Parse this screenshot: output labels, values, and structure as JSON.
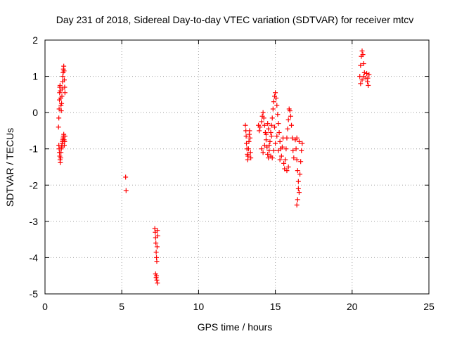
{
  "chart_data": {
    "type": "scatter",
    "title": "Day 231 of 2018, Sidereal Day-to-day VTEC variation (SDTVAR) for receiver mtcv",
    "xlabel": "GPS time / hours",
    "ylabel": "SDTVAR / TECUs",
    "xlim": [
      0,
      25
    ],
    "ylim": [
      -5,
      2
    ],
    "xticks": [
      0,
      5,
      10,
      15,
      20,
      25
    ],
    "yticks": [
      -5,
      -4,
      -3,
      -2,
      -1,
      0,
      1,
      2
    ],
    "xtick_labels": [
      "0",
      "5",
      "10",
      "15",
      "20",
      "25"
    ],
    "ytick_labels": [
      "-5",
      "-4",
      "-3",
      "-2",
      "-1",
      "0",
      "1",
      "2"
    ],
    "grid": true,
    "marker": "+",
    "series": [
      {
        "name": "SDTVAR",
        "color": "#ff0000",
        "points": [
          [
            0.88,
            -0.4
          ],
          [
            0.9,
            -0.15
          ],
          [
            0.92,
            0.1
          ],
          [
            0.94,
            0.35
          ],
          [
            0.95,
            0.55
          ],
          [
            0.96,
            0.7
          ],
          [
            0.98,
            0.75
          ],
          [
            1.0,
            0.6
          ],
          [
            1.02,
            0.4
          ],
          [
            1.04,
            0.2
          ],
          [
            1.06,
            0.05
          ],
          [
            1.08,
            0.25
          ],
          [
            1.1,
            0.45
          ],
          [
            1.12,
            0.65
          ],
          [
            1.14,
            0.85
          ],
          [
            1.16,
            1.0
          ],
          [
            1.18,
            1.1
          ],
          [
            1.2,
            1.2
          ],
          [
            1.22,
            1.28
          ],
          [
            1.24,
            1.15
          ],
          [
            1.26,
            0.9
          ],
          [
            1.28,
            0.7
          ],
          [
            1.3,
            0.55
          ],
          [
            0.9,
            -0.9
          ],
          [
            0.92,
            -1.0
          ],
          [
            0.94,
            -1.1
          ],
          [
            0.96,
            -1.2
          ],
          [
            0.98,
            -1.3
          ],
          [
            1.0,
            -1.38
          ],
          [
            1.02,
            -1.25
          ],
          [
            1.04,
            -1.1
          ],
          [
            1.06,
            -1.0
          ],
          [
            1.08,
            -0.95
          ],
          [
            1.1,
            -0.9
          ],
          [
            1.12,
            -0.85
          ],
          [
            1.14,
            -0.8
          ],
          [
            1.16,
            -0.75
          ],
          [
            1.18,
            -0.7
          ],
          [
            1.2,
            -0.65
          ],
          [
            1.22,
            -0.6
          ],
          [
            1.24,
            -0.75
          ],
          [
            1.26,
            -0.9
          ],
          [
            1.28,
            -0.8
          ],
          [
            1.3,
            -0.65
          ],
          [
            5.25,
            -1.78
          ],
          [
            5.28,
            -2.15
          ],
          [
            7.15,
            -3.2
          ],
          [
            7.18,
            -3.3
          ],
          [
            7.2,
            -3.45
          ],
          [
            7.22,
            -3.6
          ],
          [
            7.24,
            -3.85
          ],
          [
            7.26,
            -4.0
          ],
          [
            7.28,
            -4.1
          ],
          [
            7.3,
            -3.7
          ],
          [
            7.32,
            -3.25
          ],
          [
            7.34,
            -3.4
          ],
          [
            7.2,
            -4.45
          ],
          [
            7.24,
            -4.55
          ],
          [
            7.28,
            -4.62
          ],
          [
            7.32,
            -4.7
          ],
          [
            7.26,
            -4.5
          ],
          [
            13.05,
            -0.35
          ],
          [
            13.08,
            -0.5
          ],
          [
            13.1,
            -0.65
          ],
          [
            13.12,
            -0.85
          ],
          [
            13.15,
            -1.0
          ],
          [
            13.18,
            -1.15
          ],
          [
            13.2,
            -1.3
          ],
          [
            13.22,
            -1.2
          ],
          [
            13.25,
            -1.0
          ],
          [
            13.28,
            -0.8
          ],
          [
            13.3,
            -0.6
          ],
          [
            13.32,
            -0.5
          ],
          [
            13.35,
            -0.7
          ],
          [
            13.38,
            -1.1
          ],
          [
            13.4,
            -1.25
          ],
          [
            13.9,
            -0.35
          ],
          [
            13.95,
            -0.5
          ],
          [
            14.0,
            -0.4
          ],
          [
            14.1,
            -0.25
          ],
          [
            14.15,
            -0.1
          ],
          [
            14.2,
            0.0
          ],
          [
            14.25,
            -0.15
          ],
          [
            14.3,
            -0.35
          ],
          [
            14.35,
            -0.55
          ],
          [
            14.4,
            -0.75
          ],
          [
            14.45,
            -0.95
          ],
          [
            14.5,
            -1.15
          ],
          [
            14.55,
            -1.25
          ],
          [
            14.6,
            -1.05
          ],
          [
            14.65,
            -0.8
          ],
          [
            14.7,
            -0.55
          ],
          [
            14.75,
            -0.35
          ],
          [
            14.8,
            -0.15
          ],
          [
            14.85,
            0.1
          ],
          [
            14.9,
            0.3
          ],
          [
            14.95,
            0.45
          ],
          [
            15.0,
            0.55
          ],
          [
            15.05,
            0.4
          ],
          [
            15.1,
            0.2
          ],
          [
            15.15,
            -0.05
          ],
          [
            15.2,
            -0.3
          ],
          [
            15.25,
            -0.55
          ],
          [
            15.3,
            -0.8
          ],
          [
            15.35,
            -1.0
          ],
          [
            15.4,
            -1.2
          ],
          [
            15.45,
            -0.95
          ],
          [
            15.5,
            -0.7
          ],
          [
            14.1,
            -1.0
          ],
          [
            14.2,
            -1.1
          ],
          [
            14.3,
            -0.9
          ],
          [
            14.4,
            -0.6
          ],
          [
            14.5,
            -0.3
          ],
          [
            14.6,
            -0.9
          ],
          [
            14.7,
            -1.2
          ],
          [
            14.8,
            -1.25
          ],
          [
            14.9,
            -1.05
          ],
          [
            15.0,
            -0.85
          ],
          [
            15.1,
            -0.65
          ],
          [
            15.2,
            -1.05
          ],
          [
            15.3,
            -1.3
          ],
          [
            14.55,
            -0.45
          ],
          [
            14.75,
            -0.65
          ],
          [
            14.95,
            -0.4
          ],
          [
            15.55,
            -1.4
          ],
          [
            15.6,
            -1.55
          ],
          [
            15.65,
            -1.3
          ],
          [
            15.7,
            -1.0
          ],
          [
            15.75,
            -0.7
          ],
          [
            15.8,
            -0.45
          ],
          [
            15.85,
            -0.2
          ],
          [
            15.9,
            0.1
          ],
          [
            15.95,
            0.05
          ],
          [
            16.0,
            -0.1
          ],
          [
            16.05,
            -0.35
          ],
          [
            16.1,
            -0.7
          ],
          [
            16.15,
            -1.05
          ],
          [
            16.2,
            -1.25
          ],
          [
            15.75,
            -1.6
          ],
          [
            15.85,
            -1.5
          ],
          [
            16.3,
            -0.75
          ],
          [
            16.35,
            -1.0
          ],
          [
            16.4,
            -1.3
          ],
          [
            16.45,
            -1.6
          ],
          [
            16.5,
            -1.9
          ],
          [
            16.55,
            -2.2
          ],
          [
            16.45,
            -2.4
          ],
          [
            16.4,
            -2.55
          ],
          [
            16.5,
            -2.1
          ],
          [
            16.6,
            -1.7
          ],
          [
            16.65,
            -1.35
          ],
          [
            16.7,
            -1.05
          ],
          [
            16.75,
            -0.85
          ],
          [
            16.4,
            -0.7
          ],
          [
            16.55,
            -0.8
          ],
          [
            20.5,
            1.0
          ],
          [
            20.55,
            1.3
          ],
          [
            20.6,
            1.55
          ],
          [
            20.65,
            1.7
          ],
          [
            20.7,
            1.6
          ],
          [
            20.75,
            1.35
          ],
          [
            20.8,
            1.1
          ],
          [
            20.55,
            0.8
          ],
          [
            20.65,
            0.9
          ],
          [
            20.75,
            1.0
          ],
          [
            20.9,
            0.95
          ],
          [
            21.0,
            0.85
          ],
          [
            21.05,
            0.75
          ],
          [
            21.1,
            1.05
          ],
          [
            20.95,
            1.08
          ],
          [
            21.02,
            0.95
          ]
        ]
      }
    ]
  }
}
